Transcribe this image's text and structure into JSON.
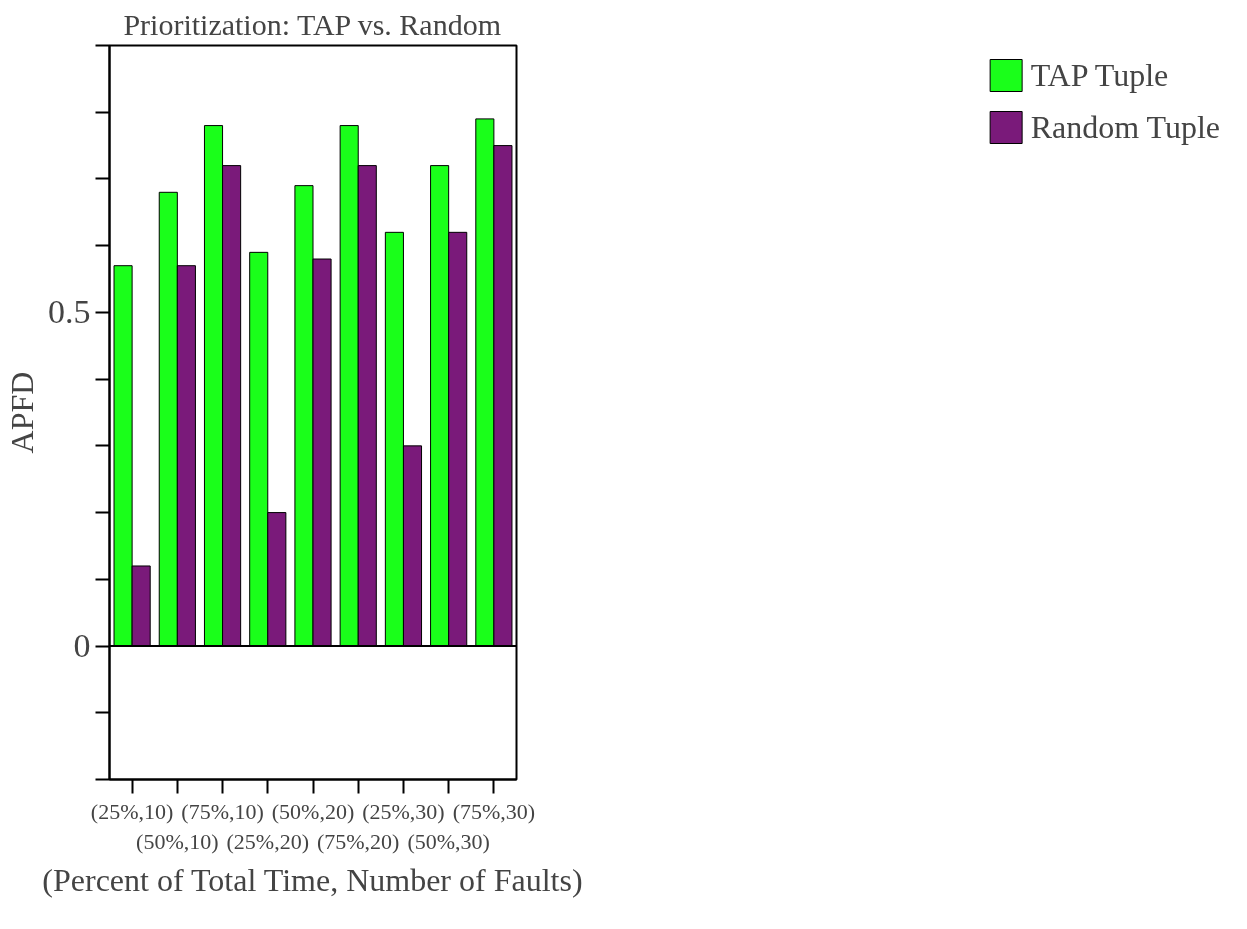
{
  "chart_data": {
    "type": "bar",
    "title": "Prioritization: TAP vs. Random",
    "xlabel": "(Percent of Total Time, Number of Faults)",
    "ylabel": "APFD",
    "categories": [
      "(25%,10)",
      "(50%,10)",
      "(75%,10)",
      "(25%,20)",
      "(50%,20)",
      "(75%,20)",
      "(25%,30)",
      "(50%,30)",
      "(75%,30)"
    ],
    "series": [
      {
        "name": "TAP Tuple",
        "color": "#1aff1a",
        "values": [
          0.57,
          0.68,
          0.78,
          0.59,
          0.69,
          0.78,
          0.62,
          0.72,
          0.79
        ]
      },
      {
        "name": "Random Tuple",
        "color": "#7a1a7a",
        "values": [
          0.12,
          0.57,
          0.72,
          0.2,
          0.58,
          0.72,
          0.3,
          0.62,
          0.75
        ]
      }
    ],
    "ylim": [
      -0.2,
      0.9
    ],
    "yticks": [
      {
        "value": -0.2,
        "label": null
      },
      {
        "value": -0.1,
        "label": null
      },
      0,
      {
        "value": 0.1,
        "label": null
      },
      {
        "value": 0.2,
        "label": null
      },
      {
        "value": 0.3,
        "label": null
      },
      {
        "value": 0.4,
        "label": null
      },
      0.5,
      {
        "value": 0.6,
        "label": null
      },
      {
        "value": 0.7,
        "label": null
      },
      {
        "value": 0.8,
        "label": null
      },
      {
        "value": 0.9,
        "label": null
      }
    ],
    "ref_lines": [
      {
        "axis": "y",
        "value": 0,
        "color": "#000000"
      }
    ],
    "grid": false,
    "legend": "right"
  }
}
